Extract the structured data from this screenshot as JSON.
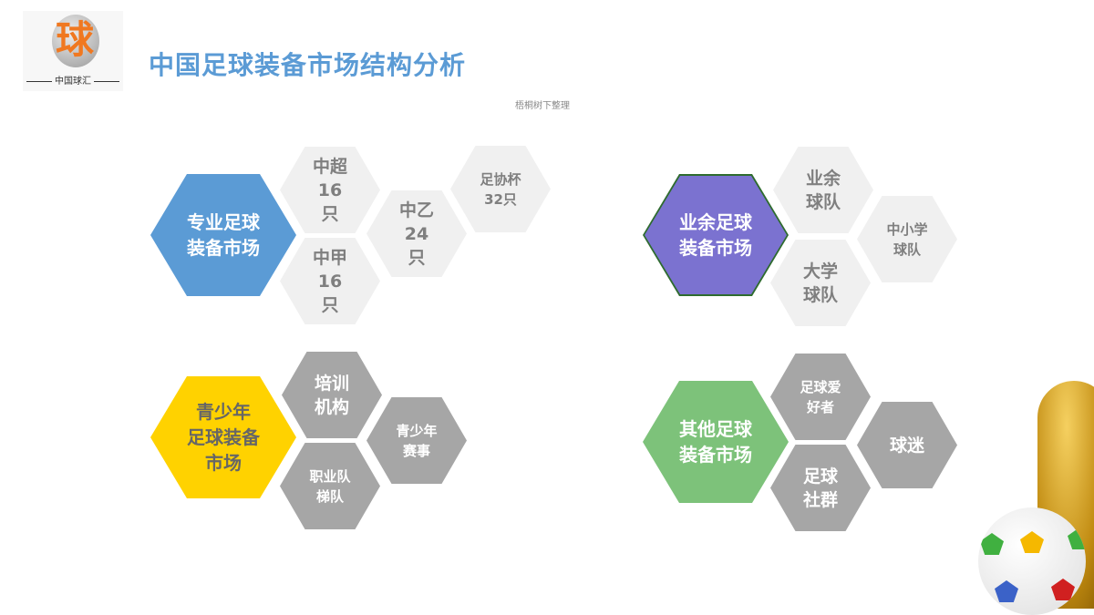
{
  "header": {
    "title": "中国足球装备市场结构分析",
    "subtitle": "梧桐树下整理",
    "logo_char": "球",
    "logo_text": "中国球汇"
  },
  "groups": [
    {
      "title": "专业足球装备市场",
      "color": "#5b9bd5",
      "items": [
        "中超16只",
        "中甲16只",
        "中乙24只",
        "足协杯32只"
      ]
    },
    {
      "title": "业余足球装备市场",
      "color": "#7b72d0",
      "items": [
        "业余球队",
        "大学球队",
        "中小学球队"
      ]
    },
    {
      "title": "青少年足球装备市场",
      "color": "#ffd200",
      "items": [
        "培训机构",
        "职业队梯队",
        "青少年赛事"
      ]
    },
    {
      "title": "其他足球装备市场",
      "color": "#7dc27a",
      "items": [
        "足球爱好者",
        "足球社群",
        "球迷"
      ]
    }
  ],
  "labels": {
    "g1": {
      "main": [
        "专业足球",
        "装备市场"
      ],
      "a": [
        "中超",
        "16只"
      ],
      "b": [
        "中甲",
        "16只"
      ],
      "c": [
        "中乙",
        "24只"
      ],
      "d": [
        "足协杯",
        "32只"
      ]
    },
    "g2": {
      "main": [
        "业余足球",
        "装备市场"
      ],
      "a": [
        "业余",
        "球队"
      ],
      "b": [
        "大学",
        "球队"
      ],
      "c": [
        "中小学",
        "球队"
      ]
    },
    "g3": {
      "main": [
        "青少年",
        "足球装备",
        "市场"
      ],
      "a": [
        "培训",
        "机构"
      ],
      "b": [
        "职业队",
        "梯队"
      ],
      "c": [
        "青少年",
        "赛事"
      ]
    },
    "g4": {
      "main": [
        "其他足球",
        "装备市场"
      ],
      "a": [
        "足球爱",
        "好者"
      ],
      "b": [
        "足球",
        "社群"
      ],
      "c": [
        "球迷"
      ]
    }
  }
}
